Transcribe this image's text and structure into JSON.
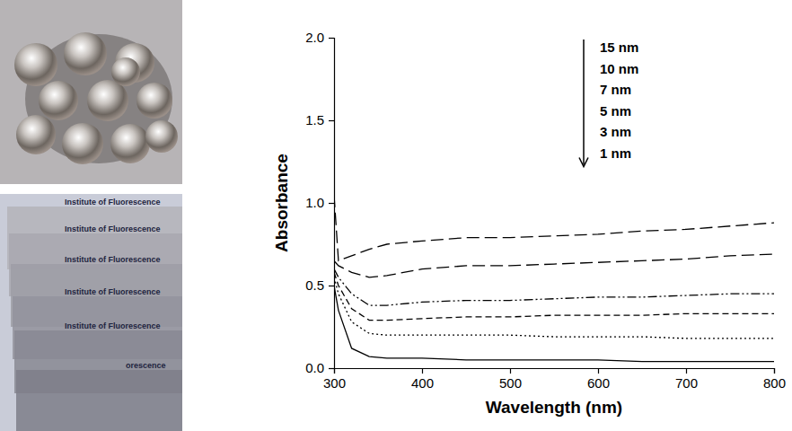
{
  "chart_data": {
    "type": "line",
    "x_label": "Wavelength (nm)",
    "y_label": "Absorbance",
    "x": [
      300,
      305,
      320,
      340,
      360,
      400,
      450,
      500,
      550,
      600,
      650,
      700,
      750,
      800
    ],
    "series": [
      {
        "name": "15 nm",
        "color": "#000000",
        "line_style": "long-dash",
        "values": [
          1.05,
          0.65,
          0.68,
          0.72,
          0.75,
          0.77,
          0.79,
          0.79,
          0.8,
          0.81,
          0.83,
          0.84,
          0.86,
          0.88
        ]
      },
      {
        "name": "10 nm",
        "color": "#000000",
        "line_style": "long-dash",
        "values": [
          0.65,
          0.62,
          0.58,
          0.55,
          0.56,
          0.6,
          0.62,
          0.62,
          0.63,
          0.64,
          0.65,
          0.66,
          0.68,
          0.69
        ]
      },
      {
        "name": "7 nm",
        "color": "#000000",
        "line_style": "dash-dot-dot",
        "values": [
          0.6,
          0.55,
          0.45,
          0.38,
          0.38,
          0.4,
          0.41,
          0.41,
          0.42,
          0.43,
          0.43,
          0.44,
          0.45,
          0.45
        ]
      },
      {
        "name": "5 nm",
        "color": "#000000",
        "line_style": "dash",
        "values": [
          0.58,
          0.5,
          0.36,
          0.29,
          0.29,
          0.3,
          0.31,
          0.31,
          0.32,
          0.32,
          0.32,
          0.33,
          0.33,
          0.33
        ]
      },
      {
        "name": "3 nm",
        "color": "#000000",
        "line_style": "dot",
        "values": [
          0.55,
          0.45,
          0.28,
          0.21,
          0.2,
          0.2,
          0.2,
          0.2,
          0.19,
          0.19,
          0.19,
          0.18,
          0.18,
          0.18
        ]
      },
      {
        "name": "1 nm",
        "color": "#000000",
        "line_style": "solid",
        "values": [
          0.5,
          0.35,
          0.12,
          0.07,
          0.06,
          0.06,
          0.05,
          0.05,
          0.05,
          0.05,
          0.04,
          0.04,
          0.04,
          0.04
        ]
      }
    ],
    "xlim": [
      300,
      800
    ],
    "xticks": [
      300,
      400,
      500,
      600,
      700,
      800
    ],
    "ylim": [
      0,
      2
    ],
    "yticks": [
      {
        "value": 0,
        "label": "0.0"
      },
      {
        "value": 0.5,
        "label": "0.5"
      },
      {
        "value": 1,
        "label": "1.0"
      },
      {
        "value": 1.5,
        "label": "1.5"
      },
      {
        "value": 2,
        "label": "2.0"
      }
    ],
    "legend": "upper right",
    "grid": false
  },
  "photos": {
    "slide_text": [
      "Institute of Fluorescence",
      "Institute of Fluorescence",
      "Institute of Fluorescence",
      "Institute of Fluorescence",
      "Institute of Fluorescence",
      "orescence"
    ]
  }
}
